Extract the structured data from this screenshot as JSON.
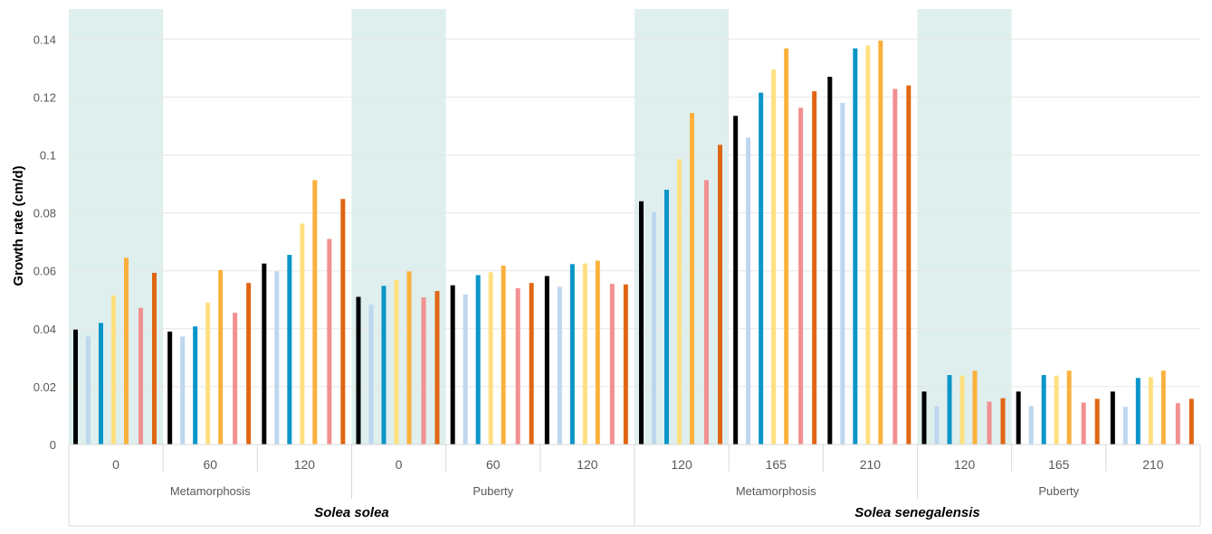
{
  "chart_data": {
    "type": "bar",
    "ylabel": "Growth rate (cm/d)",
    "ylim": [
      0,
      0.15
    ],
    "yticks": [
      "0",
      "0.02",
      "0.04",
      "0.06",
      "0.08",
      "0.1",
      "0.12",
      "0.14"
    ],
    "grid": true,
    "colors": [
      "#000000",
      "#BDD7EE",
      "#0A95C8",
      "#FFE07F",
      "#FBB13C",
      "#F29090",
      "#E06614"
    ],
    "shaded_color": "#DEEFEE",
    "species": [
      {
        "name": "Solea solea"
      },
      {
        "name": "Solea senegalensis"
      }
    ],
    "stages": [
      {
        "label": "Metamorphosis",
        "species": 0
      },
      {
        "label": "Puberty",
        "species": 0
      },
      {
        "label": "Metamorphosis",
        "species": 1
      },
      {
        "label": "Puberty",
        "species": 1
      }
    ],
    "groups": [
      {
        "label": "0",
        "stage": 0,
        "shaded": true,
        "values": [
          0.0397,
          0.0373,
          0.042,
          0.0515,
          0.0645,
          0.0472,
          0.0593
        ]
      },
      {
        "label": "60",
        "stage": 0,
        "shaded": false,
        "values": [
          0.039,
          0.0373,
          0.0408,
          0.049,
          0.0603,
          0.0455,
          0.0558
        ]
      },
      {
        "label": "120",
        "stage": 0,
        "shaded": false,
        "values": [
          0.0625,
          0.0598,
          0.0655,
          0.0763,
          0.0913,
          0.071,
          0.0848
        ]
      },
      {
        "label": "0",
        "stage": 1,
        "shaded": true,
        "values": [
          0.051,
          0.0483,
          0.0548,
          0.0568,
          0.0598,
          0.0508,
          0.053
        ]
      },
      {
        "label": "60",
        "stage": 1,
        "shaded": false,
        "values": [
          0.055,
          0.0518,
          0.0585,
          0.0595,
          0.0618,
          0.054,
          0.0558
        ]
      },
      {
        "label": "120",
        "stage": 1,
        "shaded": false,
        "values": [
          0.0582,
          0.0545,
          0.0623,
          0.0625,
          0.0635,
          0.0555,
          0.0553
        ]
      },
      {
        "label": "120",
        "stage": 2,
        "shaded": true,
        "values": [
          0.084,
          0.0803,
          0.088,
          0.0985,
          0.1145,
          0.0913,
          0.1035
        ]
      },
      {
        "label": "165",
        "stage": 2,
        "shaded": false,
        "values": [
          0.1135,
          0.106,
          0.1215,
          0.1295,
          0.1368,
          0.1163,
          0.122
        ]
      },
      {
        "label": "210",
        "stage": 2,
        "shaded": false,
        "values": [
          0.127,
          0.118,
          0.1368,
          0.1378,
          0.1395,
          0.1228,
          0.124
        ]
      },
      {
        "label": "120",
        "stage": 3,
        "shaded": true,
        "values": [
          0.0183,
          0.0133,
          0.024,
          0.0238,
          0.0255,
          0.0148,
          0.016
        ]
      },
      {
        "label": "165",
        "stage": 3,
        "shaded": false,
        "values": [
          0.0183,
          0.0133,
          0.024,
          0.0238,
          0.0255,
          0.0145,
          0.0158
        ]
      },
      {
        "label": "210",
        "stage": 3,
        "shaded": false,
        "values": [
          0.0183,
          0.013,
          0.023,
          0.0233,
          0.0255,
          0.0143,
          0.0158
        ]
      }
    ]
  }
}
